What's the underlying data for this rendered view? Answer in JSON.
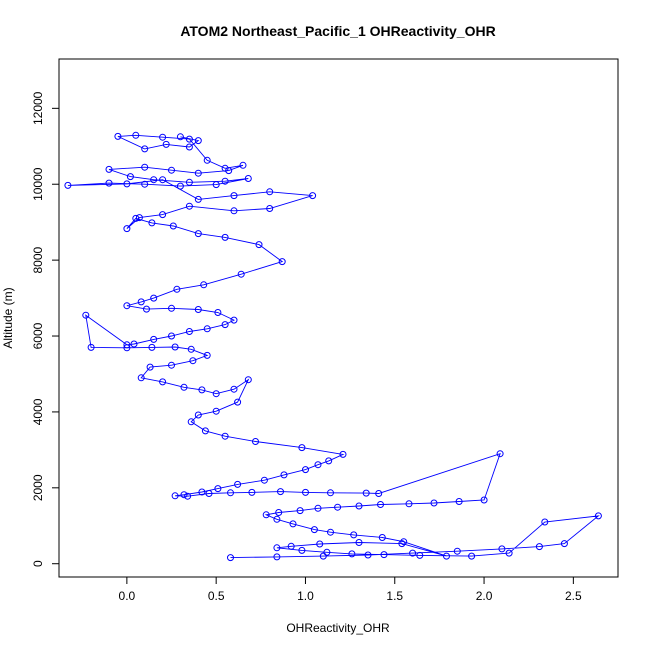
{
  "chart_data": {
    "type": "scatter",
    "title": "ATOM2 Northeast_Pacific_1 OHReactivity_OHR",
    "xlabel": "OHReactivity_OHR",
    "ylabel": "Altitude (m)",
    "xlim": [
      -0.38,
      2.75
    ],
    "ylim": [
      -350,
      13300
    ],
    "xticks": [
      0.0,
      0.5,
      1.0,
      1.5,
      2.0,
      2.5
    ],
    "xtick_labels": [
      "0.0",
      "0.5",
      "1.0",
      "1.5",
      "2.0",
      "2.5"
    ],
    "yticks": [
      0,
      2000,
      4000,
      6000,
      8000,
      10000,
      12000
    ],
    "ytick_labels": [
      "0",
      "2000",
      "4000",
      "6000",
      "8000",
      "10000",
      "12000"
    ],
    "grid": false,
    "legend": "none",
    "marker": "open-circle",
    "connected": true,
    "color": "#0000ff",
    "series": [
      {
        "x": [
          0.3,
          0.4,
          0.35,
          0.22,
          0.1,
          -0.05,
          0.05,
          0.2,
          0.35,
          0.45,
          0.55,
          0.65,
          0.57,
          0.4,
          0.25,
          0.1,
          -0.1,
          0.02,
          0.15,
          0.35,
          0.55,
          0.68,
          0.5,
          0.3,
          0.1,
          -0.1,
          -0.33,
          0.0,
          0.2,
          0.4,
          0.6,
          0.8,
          1.04,
          0.8,
          0.6,
          0.35,
          0.2,
          0.07,
          0.0,
          0.05,
          0.14,
          0.26,
          0.4,
          0.55,
          0.74,
          0.87,
          0.64,
          0.43,
          0.28,
          0.15,
          0.08,
          0.0,
          0.11,
          0.25,
          0.4,
          0.51,
          0.6,
          0.55,
          0.45,
          0.35,
          0.25,
          0.15,
          0.04,
          0.0,
          -0.23,
          -0.2,
          0.0,
          0.14,
          0.27,
          0.36,
          0.45,
          0.37,
          0.25,
          0.13,
          0.08,
          0.2,
          0.32,
          0.42,
          0.5,
          0.6,
          0.68,
          0.62,
          0.5,
          0.4,
          0.36,
          0.44,
          0.55,
          0.72,
          0.98,
          1.21,
          1.13,
          1.07,
          1.0,
          0.88,
          0.77,
          0.62,
          0.51,
          0.42,
          0.32,
          0.27,
          0.34,
          0.46,
          0.58,
          0.7,
          0.86,
          1.0,
          1.14,
          1.34,
          1.41,
          2.09,
          2.0,
          1.86,
          1.72,
          1.58,
          1.42,
          1.3,
          1.18,
          1.07,
          0.97,
          0.85,
          0.78,
          0.84,
          0.93,
          1.05,
          1.14,
          1.27,
          1.43,
          1.55,
          1.79,
          1.54,
          1.3,
          1.08,
          0.92,
          0.84,
          0.98,
          1.12,
          1.26,
          1.44,
          1.64,
          1.93,
          2.14,
          2.34,
          2.64,
          2.45,
          2.31,
          2.1,
          1.85,
          1.6,
          1.35,
          1.1,
          0.84,
          0.58
        ],
        "y": [
          11250,
          11150,
          10980,
          11050,
          10930,
          11260,
          11290,
          11240,
          11190,
          10630,
          10420,
          10500,
          10360,
          10290,
          10370,
          10450,
          10390,
          10200,
          10120,
          10050,
          10080,
          10150,
          9990,
          9950,
          10000,
          10030,
          9970,
          10010,
          10120,
          9600,
          9700,
          9800,
          9700,
          9360,
          9300,
          9420,
          9200,
          9120,
          8830,
          9100,
          8980,
          8900,
          8700,
          8600,
          8410,
          7960,
          7630,
          7350,
          7230,
          7000,
          6900,
          6800,
          6710,
          6730,
          6700,
          6620,
          6420,
          6300,
          6190,
          6120,
          6000,
          5910,
          5790,
          5770,
          6550,
          5700,
          5690,
          5700,
          5710,
          5650,
          5490,
          5350,
          5230,
          5180,
          4900,
          4790,
          4650,
          4580,
          4480,
          4600,
          4850,
          4260,
          4020,
          3920,
          3740,
          3500,
          3360,
          3220,
          3060,
          2880,
          2710,
          2610,
          2480,
          2340,
          2200,
          2090,
          1980,
          1890,
          1820,
          1790,
          1780,
          1850,
          1870,
          1880,
          1900,
          1880,
          1870,
          1860,
          1850,
          2900,
          1680,
          1640,
          1600,
          1580,
          1560,
          1520,
          1490,
          1460,
          1400,
          1350,
          1290,
          1170,
          1050,
          900,
          830,
          760,
          690,
          580,
          200,
          530,
          560,
          520,
          460,
          420,
          350,
          300,
          260,
          240,
          220,
          200,
          280,
          1100,
          1260,
          530,
          450,
          390,
          330,
          280,
          230,
          200,
          180,
          160
        ]
      }
    ]
  }
}
